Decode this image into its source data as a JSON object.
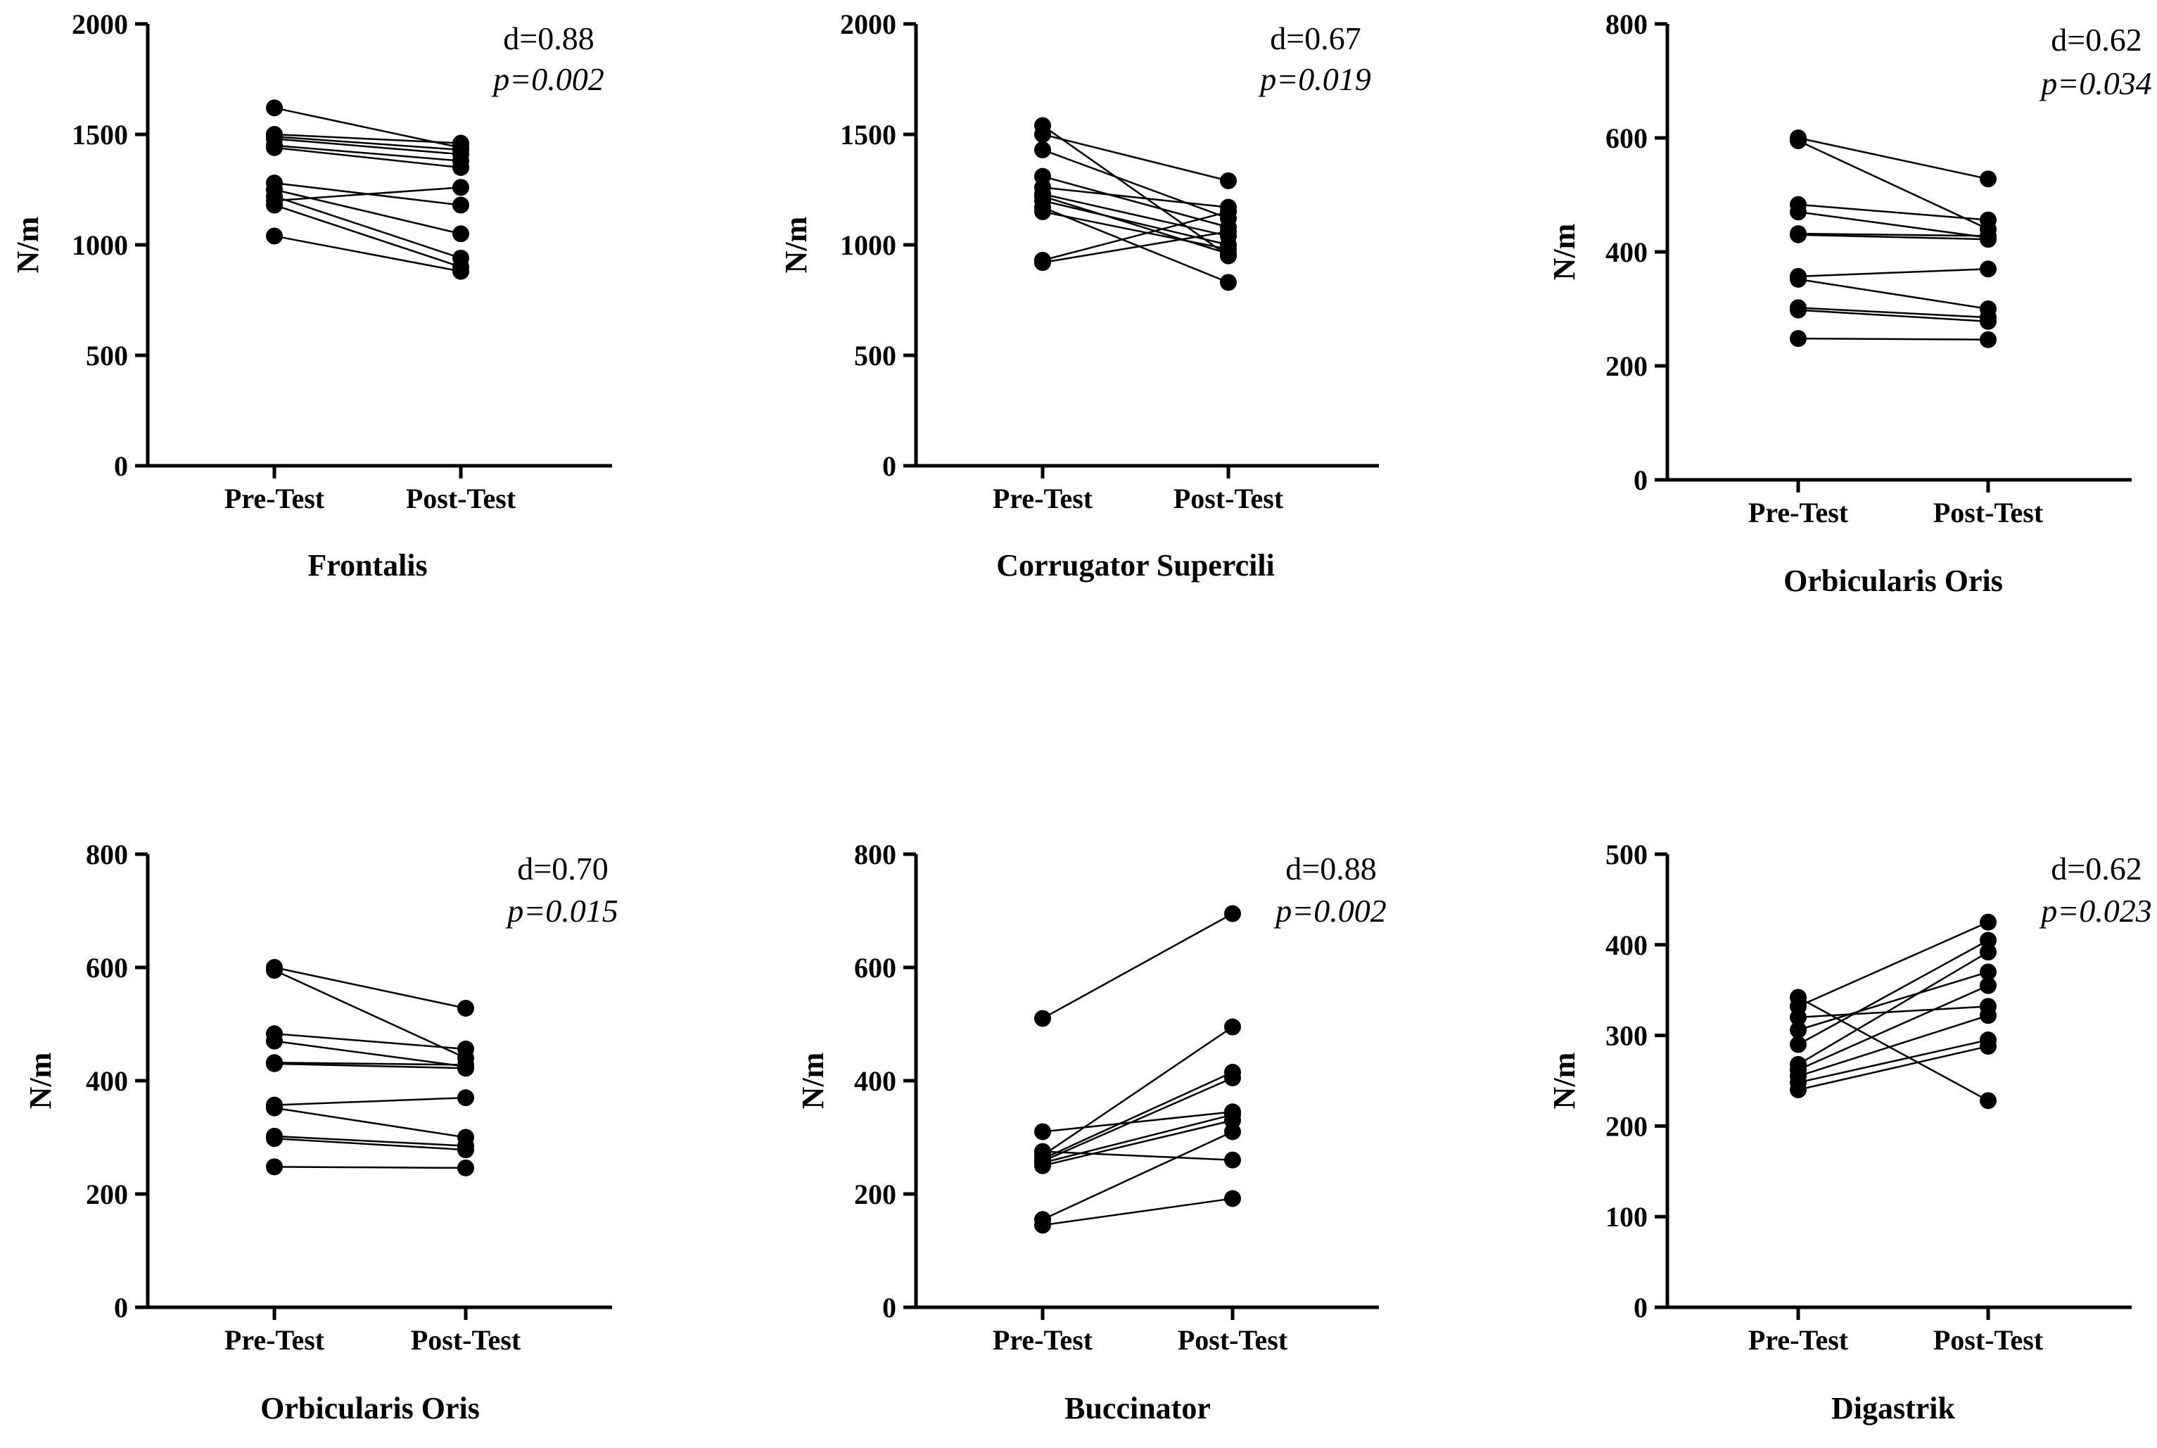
{
  "chart_data": [
    {
      "type": "line",
      "title": "Frontalis",
      "ylabel": "N/m",
      "xlabel": "",
      "categories": [
        "Pre-Test",
        "Post-Test"
      ],
      "ylim": [
        0,
        2000
      ],
      "yticks": [
        "0",
        "500",
        "1000",
        "1500",
        "2000"
      ],
      "annotation": {
        "d": "d=0.88",
        "p": "p=0.002"
      },
      "pairs": [
        [
          1620,
          1440
        ],
        [
          1500,
          1460
        ],
        [
          1490,
          1430
        ],
        [
          1480,
          1410
        ],
        [
          1450,
          1380
        ],
        [
          1440,
          1350
        ],
        [
          1280,
          1180
        ],
        [
          1250,
          1050
        ],
        [
          1220,
          940
        ],
        [
          1200,
          1260
        ],
        [
          1180,
          900
        ],
        [
          1040,
          880
        ]
      ]
    },
    {
      "type": "line",
      "title": "Corrugator Supercili",
      "ylabel": "N/m",
      "xlabel": "",
      "categories": [
        "Pre-Test",
        "Post-Test"
      ],
      "ylim": [
        0,
        2000
      ],
      "yticks": [
        "0",
        "500",
        "1000",
        "1500",
        "2000"
      ],
      "annotation": {
        "d": "d=0.67",
        "p": "p=0.019"
      },
      "pairs": [
        [
          1540,
          950
        ],
        [
          1500,
          1290
        ],
        [
          1430,
          1120
        ],
        [
          1310,
          1080
        ],
        [
          1260,
          1170
        ],
        [
          1230,
          1040
        ],
        [
          1200,
          1000
        ],
        [
          1170,
          830
        ],
        [
          1150,
          980
        ],
        [
          930,
          1150
        ],
        [
          920,
          1060
        ],
        [
          1220,
          960
        ]
      ]
    },
    {
      "type": "line",
      "title": "Orbicularis Oris",
      "ylabel": "N/m",
      "xlabel": "",
      "categories": [
        "Pre-Test",
        "Post-Test"
      ],
      "ylim": [
        0,
        800
      ],
      "yticks": [
        "0",
        "200",
        "400",
        "600",
        "800"
      ],
      "annotation": {
        "d": "d=0.62",
        "p": "p=0.034"
      },
      "pairs": [
        [
          600,
          528
        ],
        [
          595,
          440
        ],
        [
          483,
          456
        ],
        [
          470,
          425
        ],
        [
          432,
          428
        ],
        [
          430,
          422
        ],
        [
          357,
          370
        ],
        [
          352,
          300
        ],
        [
          302,
          285
        ],
        [
          298,
          278
        ],
        [
          248,
          246
        ]
      ]
    },
    {
      "type": "line",
      "title": "Orbicularis Oris",
      "ylabel": "N/m",
      "xlabel": "",
      "categories": [
        "Pre-Test",
        "Post-Test"
      ],
      "ylim": [
        0,
        800
      ],
      "yticks": [
        "0",
        "200",
        "400",
        "600",
        "800"
      ],
      "annotation": {
        "d": "d=0.70",
        "p": "p=0.015"
      },
      "pairs": [
        [
          600,
          528
        ],
        [
          595,
          440
        ],
        [
          483,
          456
        ],
        [
          470,
          425
        ],
        [
          432,
          428
        ],
        [
          430,
          422
        ],
        [
          357,
          370
        ],
        [
          352,
          300
        ],
        [
          302,
          285
        ],
        [
          298,
          278
        ],
        [
          248,
          246
        ]
      ]
    },
    {
      "type": "line",
      "title": "Buccinator",
      "ylabel": "N/m",
      "xlabel": "",
      "categories": [
        "Pre-Test",
        "Post-Test"
      ],
      "ylim": [
        0,
        800
      ],
      "yticks": [
        "0",
        "200",
        "400",
        "600",
        "800"
      ],
      "annotation": {
        "d": "d=0.88",
        "p": "p=0.002"
      },
      "pairs": [
        [
          510,
          695
        ],
        [
          310,
          345
        ],
        [
          275,
          260
        ],
        [
          268,
          495
        ],
        [
          262,
          415
        ],
        [
          258,
          405
        ],
        [
          255,
          340
        ],
        [
          250,
          330
        ],
        [
          155,
          310
        ],
        [
          145,
          192
        ]
      ]
    },
    {
      "type": "line",
      "title": "Digastrik",
      "ylabel": "N/m",
      "xlabel": "",
      "categories": [
        "Pre-Test",
        "Post-Test"
      ],
      "ylim": [
        0,
        500
      ],
      "yticks": [
        "0",
        "100",
        "200",
        "300",
        "400",
        "500"
      ],
      "annotation": {
        "d": "d=0.62",
        "p": "p=0.023"
      },
      "pairs": [
        [
          342,
          228
        ],
        [
          332,
          425
        ],
        [
          320,
          332
        ],
        [
          306,
          370
        ],
        [
          290,
          405
        ],
        [
          268,
          392
        ],
        [
          262,
          355
        ],
        [
          255,
          322
        ],
        [
          248,
          295
        ],
        [
          240,
          288
        ]
      ]
    }
  ]
}
